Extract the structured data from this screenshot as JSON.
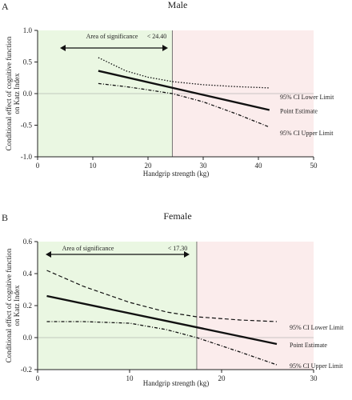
{
  "chart_data": [
    {
      "type": "line",
      "panel_label": "A",
      "title": "Male",
      "xlabel": "Handgrip strength (kg)",
      "ylabel_line1": "Conditional effect of cognitive function",
      "ylabel_line2": "on Katz Index",
      "xlim": [
        0,
        50
      ],
      "ylim": [
        -1.0,
        1.0
      ],
      "x_ticks": [
        0,
        10,
        20,
        30,
        40,
        50
      ],
      "y_ticks": [
        -1.0,
        -0.5,
        0.0,
        0.5,
        1.0
      ],
      "y_tick_labels": [
        "-1.0",
        "-0.5",
        "0.0",
        "0.5",
        "1.0"
      ],
      "significance_threshold": 24.4,
      "significance_label": "Area of significance",
      "threshold_label": "< 24.40",
      "colors": {
        "significant_region": "#eaf7e2",
        "nonsignificant_region": "#fbecec"
      },
      "series": [
        {
          "name": "95% CI Lower Limit",
          "style": "dotted",
          "x": [
            11,
            16,
            20,
            24.4,
            30,
            36,
            42
          ],
          "y": [
            0.57,
            0.36,
            0.26,
            0.19,
            0.14,
            0.11,
            0.09
          ]
        },
        {
          "name": "Point Estimate",
          "style": "solid",
          "x": [
            11,
            42
          ],
          "y": [
            0.36,
            -0.26
          ]
        },
        {
          "name": "95% CI Upper Limit",
          "style": "dashdot",
          "x": [
            11,
            16,
            20,
            24.4,
            30,
            36,
            42
          ],
          "y": [
            0.16,
            0.11,
            0.06,
            0.0,
            -0.13,
            -0.32,
            -0.53
          ]
        }
      ]
    },
    {
      "type": "line",
      "panel_label": "B",
      "title": "Female",
      "xlabel": "Handgrip strength (kg)",
      "ylabel_line1": "Conditional effect of cognitive function",
      "ylabel_line2": "on Katz Index",
      "xlim": [
        0,
        30
      ],
      "ylim": [
        -0.2,
        0.6
      ],
      "x_ticks": [
        0,
        10,
        20,
        30
      ],
      "y_ticks": [
        -0.2,
        0.0,
        0.2,
        0.4,
        0.6
      ],
      "y_tick_labels": [
        "-0.2",
        "0.0",
        "0.2",
        "0.4",
        "0.6"
      ],
      "significance_threshold": 17.3,
      "significance_label": "Area of significance",
      "threshold_label": "< 17.30",
      "colors": {
        "significant_region": "#eaf7e2",
        "nonsignificant_region": "#fbecec"
      },
      "series": [
        {
          "name": "95% CI Lower Limit",
          "style": "dashed",
          "x": [
            1,
            5,
            10,
            14,
            17.3,
            22,
            26
          ],
          "y": [
            0.42,
            0.32,
            0.22,
            0.16,
            0.13,
            0.11,
            0.1
          ]
        },
        {
          "name": "Point Estimate",
          "style": "solid",
          "x": [
            1,
            26
          ],
          "y": [
            0.26,
            -0.04
          ]
        },
        {
          "name": "95% CI Upper Limit",
          "style": "dashdot",
          "x": [
            1,
            5,
            10,
            14,
            17.3,
            22,
            26
          ],
          "y": [
            0.1,
            0.1,
            0.09,
            0.05,
            0.0,
            -0.09,
            -0.17
          ]
        }
      ]
    }
  ]
}
